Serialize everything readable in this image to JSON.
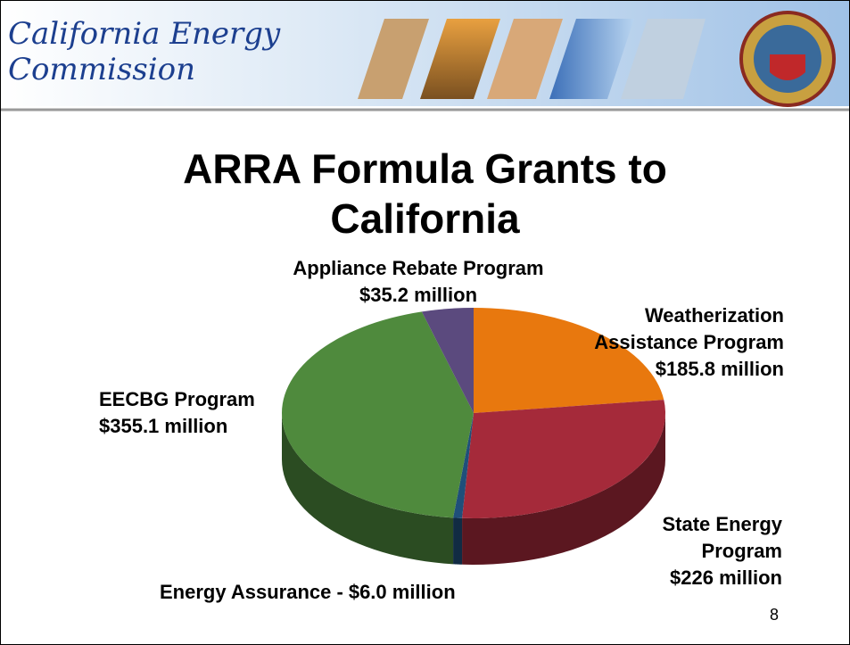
{
  "header": {
    "logo_lines": [
      "California Energy",
      "Commission"
    ]
  },
  "chart_data": {
    "type": "pie3d",
    "title": "ARRA Formula Grants to California",
    "categories": [
      "Weatherization Assistance Program",
      "State Energy Program",
      "Energy Assurance -",
      "EECBG Program",
      "Appliance Rebate Program"
    ],
    "values": [
      185.8,
      226,
      6.0,
      355.1,
      35.2
    ],
    "value_labels": [
      "$185.8 million",
      "$226 million",
      "$6.0 million",
      "$355.1 million",
      "$35.2 million"
    ],
    "colors": [
      "#e8780e",
      "#a52a3a",
      "#1f4f7a",
      "#4f8a3d",
      "#5b4a7e"
    ]
  },
  "page_number": "8"
}
